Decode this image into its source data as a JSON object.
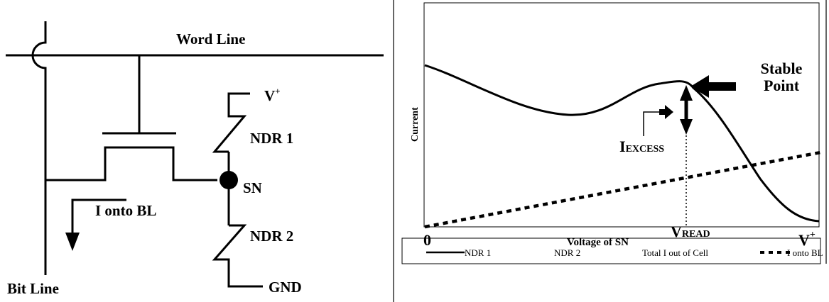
{
  "circuit": {
    "word_line": "Word Line",
    "bit_line": "Bit Line",
    "vplus": "V",
    "vplus_sup": "+",
    "ndr1": "NDR 1",
    "ndr2": "NDR 2",
    "sn": "SN",
    "i_onto_bl": "I onto BL",
    "gnd": "GND"
  },
  "graph": {
    "ylabel": "Current",
    "xlabel": "Voltage of SN",
    "x_start": "0",
    "x_end": "V",
    "x_end_sup": "+",
    "stable_point_line1": "Stable",
    "stable_point_line2": "Point",
    "i_excess_main": "I",
    "i_excess_sub": "EXCESS",
    "v_read_main": "V",
    "v_read_sub": "READ",
    "legend": [
      {
        "label": "NDR 1",
        "style": "solid"
      },
      {
        "label": "NDR 2",
        "style": "none"
      },
      {
        "label": "Total I out of Cell",
        "style": "none"
      },
      {
        "label": "I onto BL",
        "style": "dashed"
      }
    ]
  },
  "colors": {
    "ink": "#000000",
    "background": "#ffffff"
  }
}
